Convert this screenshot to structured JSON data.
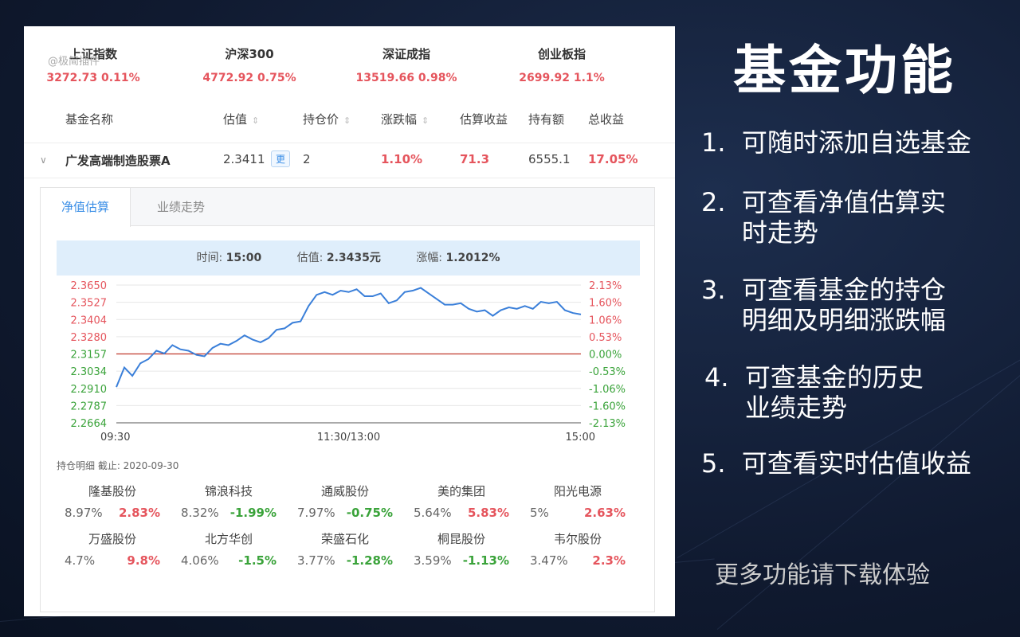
{
  "watermark": "@极简插件",
  "indices": [
    {
      "name": "上证指数",
      "value": "3272.73",
      "change": "0.11%"
    },
    {
      "name": "沪深300",
      "value": "4772.92",
      "change": "0.75%"
    },
    {
      "name": "深证成指",
      "value": "13519.66",
      "change": "0.98%"
    },
    {
      "name": "创业板指",
      "value": "2699.92",
      "change": "1.1%"
    }
  ],
  "table": {
    "headers": [
      "基金名称",
      "估值",
      "持仓价",
      "涨跌幅",
      "估算收益",
      "持有额",
      "总收益"
    ],
    "row": {
      "name": "广发高端制造股票A",
      "estimate": "2.3411",
      "update_label": "更",
      "cost": "2",
      "change": "1.10%",
      "est_profit": "71.3",
      "holding": "6555.1",
      "total_profit": "17.05%"
    }
  },
  "tabs": [
    "净值估算",
    "业绩走势"
  ],
  "info": {
    "time_label": "时间:",
    "time": "15:00",
    "est_label": "估值:",
    "est": "2.3435元",
    "chg_label": "涨幅:",
    "chg": "1.2012%"
  },
  "chart_data": {
    "type": "line",
    "x_ticks": [
      "09:30",
      "11:30/13:00",
      "15:00"
    ],
    "y_ticks": [
      "2.3650",
      "2.3527",
      "2.3404",
      "2.3280",
      "2.3157",
      "2.3034",
      "2.2910",
      "2.2787",
      "2.2664"
    ],
    "y2_ticks": [
      "2.13%",
      "1.60%",
      "1.06%",
      "0.53%",
      "0.00%",
      "-0.53%",
      "-1.06%",
      "-1.60%",
      "-2.13%"
    ],
    "ylim": [
      2.2664,
      2.365
    ],
    "baseline": 2.3157,
    "values": [
      2.292,
      2.306,
      2.3,
      2.309,
      2.312,
      2.318,
      2.316,
      2.322,
      2.319,
      2.318,
      2.315,
      2.314,
      2.32,
      2.323,
      2.322,
      2.325,
      2.329,
      2.326,
      2.324,
      2.327,
      2.333,
      2.334,
      2.338,
      2.339,
      2.35,
      2.358,
      2.36,
      2.358,
      2.361,
      2.36,
      2.362,
      2.357,
      2.357,
      2.359,
      2.352,
      2.354,
      2.36,
      2.361,
      2.363,
      2.359,
      2.355,
      2.351,
      2.351,
      2.352,
      2.348,
      2.346,
      2.347,
      2.343,
      2.347,
      2.349,
      2.348,
      2.35,
      2.348,
      2.353,
      2.352,
      2.353,
      2.347,
      2.345,
      2.344
    ],
    "colors": {
      "line": "#3a7fd9",
      "baseline": "#c0392b",
      "up": "#e5555d",
      "down": "#3aa33a"
    }
  },
  "holdings_title": "持仓明细 截止: 2020-09-30",
  "holdings": [
    {
      "name": "隆基股份",
      "weight": "8.97%",
      "change": "2.83%",
      "up": true
    },
    {
      "name": "锦浪科技",
      "weight": "8.32%",
      "change": "-1.99%",
      "up": false
    },
    {
      "name": "通威股份",
      "weight": "7.97%",
      "change": "-0.75%",
      "up": false
    },
    {
      "name": "美的集团",
      "weight": "5.64%",
      "change": "5.83%",
      "up": true
    },
    {
      "name": "阳光电源",
      "weight": "5%",
      "change": "2.63%",
      "up": true
    },
    {
      "name": "万盛股份",
      "weight": "4.7%",
      "change": "9.8%",
      "up": true
    },
    {
      "name": "北方华创",
      "weight": "4.06%",
      "change": "-1.5%",
      "up": false
    },
    {
      "name": "荣盛石化",
      "weight": "3.77%",
      "change": "-1.28%",
      "up": false
    },
    {
      "name": "桐昆股份",
      "weight": "3.59%",
      "change": "-1.13%",
      "up": false
    },
    {
      "name": "韦尔股份",
      "weight": "3.47%",
      "change": "2.3%",
      "up": true
    }
  ],
  "promo": {
    "title": "基金功能",
    "features": [
      "1.  可随时添加自选基金",
      "2.  可查看净值估算实\n     时走势",
      "3.  可查看基金的持仓\n     明细及明细涨跌幅",
      "4.  可查基金的历史\n     业绩走势",
      "5.  可查看实时估值收益"
    ],
    "footer": "更多功能请下载体验"
  }
}
